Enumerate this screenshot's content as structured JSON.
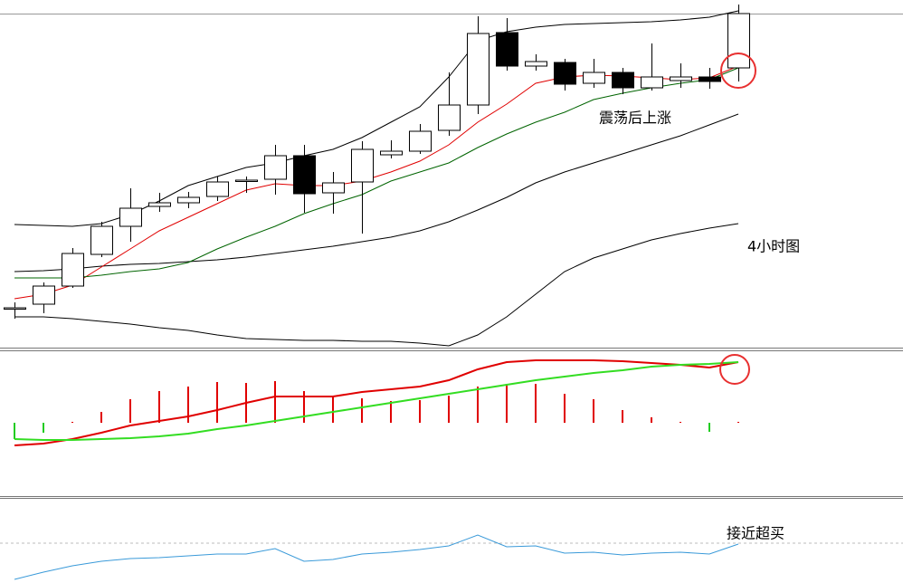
{
  "chart_data": [
    {
      "type": "candlestick",
      "ylim": [
        0,
        385
      ],
      "up_color": "#ffffff",
      "down_color": "#000000",
      "ohlc": {
        "open": [
          45,
          49,
          69,
          104,
          135,
          157,
          161,
          168,
          186,
          187,
          213,
          172,
          184,
          214,
          218,
          241,
          269,
          349,
          312,
          316,
          293,
          305,
          288,
          296,
          300,
          310
        ],
        "high": [
          51,
          73,
          111,
          140,
          177,
          172,
          173,
          190,
          190,
          225,
          225,
          195,
          229,
          230,
          248,
          305,
          367,
          365,
          325,
          320,
          320,
          310,
          337,
          315,
          310,
          380
        ],
        "low": [
          33,
          39,
          67,
          101,
          118,
          151,
          155,
          163,
          172,
          170,
          150,
          149,
          127,
          210,
          215,
          235,
          259,
          307,
          307,
          285,
          288,
          281,
          285,
          288,
          287,
          295
        ],
        "close": [
          45,
          69,
          105,
          135,
          155,
          161,
          167,
          184,
          186,
          213,
          171,
          183,
          220,
          218,
          240,
          269,
          348,
          312,
          317,
          292,
          305,
          288,
          300,
          300,
          295,
          370
        ]
      },
      "lines": [
        {
          "color": "#000000",
          "values": [
            137,
            136,
            135,
            138,
            148,
            163,
            180,
            190,
            200,
            205,
            213,
            220,
            233,
            250,
            267,
            300,
            340,
            350,
            355,
            358,
            359,
            360,
            361,
            363,
            366,
            373
          ]
        },
        {
          "color": "#000000",
          "values": [
            85,
            86,
            88,
            91,
            93,
            94,
            96,
            98,
            101,
            105,
            109,
            113,
            118,
            123,
            130,
            140,
            153,
            167,
            183,
            195,
            205,
            215,
            225,
            235,
            247,
            259
          ]
        },
        {
          "color": "#000000",
          "values": [
            35,
            35,
            33,
            30,
            27,
            23,
            20,
            15,
            11,
            10,
            9,
            9,
            8,
            8,
            6,
            3,
            15,
            35,
            60,
            85,
            100,
            110,
            120,
            127,
            133,
            138
          ]
        },
        {
          "color": "#e00000",
          "values": [
            55,
            60,
            70,
            90,
            110,
            130,
            145,
            160,
            175,
            182,
            180,
            180,
            185,
            195,
            207,
            225,
            250,
            270,
            293,
            300,
            302,
            301,
            299,
            297,
            299,
            312
          ]
        },
        {
          "color": "#006400",
          "values": [
            78,
            78,
            78,
            81,
            85,
            88,
            95,
            110,
            123,
            135,
            149,
            160,
            170,
            185,
            195,
            205,
            222,
            237,
            250,
            261,
            275,
            282,
            288,
            293,
            297,
            310
          ]
        }
      ],
      "annotations": [
        "震荡后上涨",
        "4小时图"
      ]
    },
    {
      "type": "macd",
      "ylim": [
        -81,
        79
      ],
      "positive_color": "#e00000",
      "negative_color": "#22cc22",
      "histogram": [
        -18,
        -11,
        1,
        12,
        26,
        35,
        40,
        45,
        44,
        46,
        35,
        30,
        27,
        24,
        25,
        30,
        40,
        43,
        43,
        32,
        26,
        14,
        6,
        1,
        -10,
        1
      ],
      "lines": [
        {
          "color": "#e00000",
          "values": [
            -25,
            -23,
            -18,
            -11,
            -3,
            2,
            7,
            14,
            22,
            29,
            29,
            29,
            34,
            37,
            40,
            47,
            59,
            67,
            69,
            69,
            69,
            68,
            66,
            64,
            61,
            67
          ]
        },
        {
          "color": "#33dd22",
          "values": [
            -18,
            -19,
            -19,
            -18,
            -17,
            -15,
            -12,
            -7,
            -3,
            2,
            7,
            12,
            17,
            22,
            27,
            32,
            37,
            42,
            47,
            51,
            55,
            58,
            62,
            64,
            65,
            67
          ]
        }
      ]
    },
    {
      "type": "line",
      "ylim": [
        0,
        93
      ],
      "levels": [
        44
      ],
      "lines": [
        {
          "color": "#3a9ad9",
          "values": [
            4,
            12,
            19,
            24,
            27,
            28,
            30,
            32,
            32,
            38,
            24,
            26,
            32,
            34,
            37,
            41,
            53,
            40,
            41,
            33,
            34,
            31,
            33,
            34,
            32,
            43
          ]
        }
      ],
      "annotations": [
        "接近超买"
      ]
    }
  ]
}
